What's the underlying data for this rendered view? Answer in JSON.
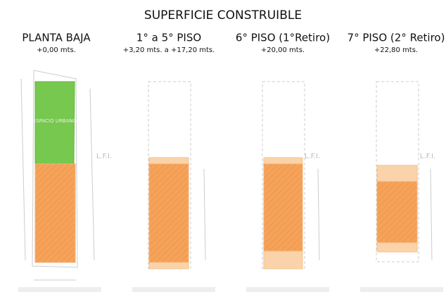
{
  "title": "SUPERFICIE CONSTRUIBLE",
  "columns": [
    {
      "title": "PLANTA BAJA",
      "subtitle": "+0,00 mts.",
      "zone_label": "ESPACIO URBANO",
      "lfi": "L.F.I."
    },
    {
      "title": "1° a 5° PISO",
      "subtitle": "+3,20 mts.  a +17,20 mts."
    },
    {
      "title": "6° PISO (1°Retiro)",
      "subtitle": "+20,00 mts.",
      "lfi": "L.F.I."
    },
    {
      "title": "7° PISO (2° Retiro)",
      "subtitle": "+22,80 mts.",
      "lfi": "L.F.I."
    }
  ]
}
